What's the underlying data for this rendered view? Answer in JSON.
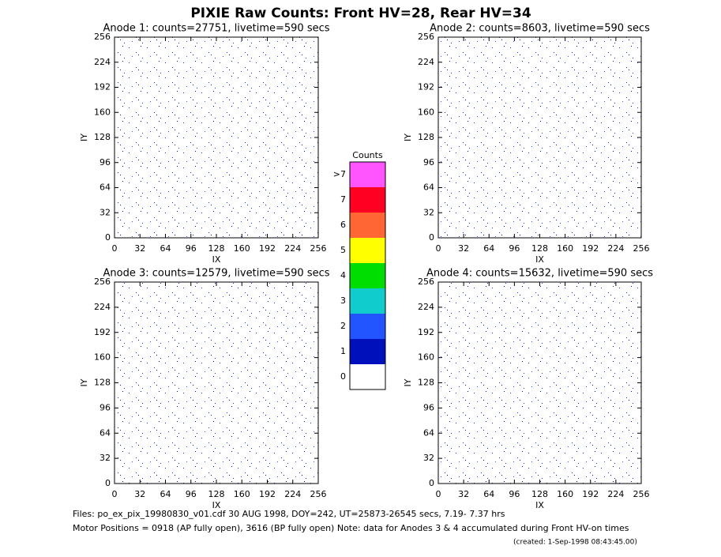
{
  "chart_data": [
    {
      "type": "heatmap",
      "title": "Anode 1: counts=27751, livetime=590 secs",
      "xlabel": "IX",
      "ylabel": "IY",
      "xlim": [
        0,
        256
      ],
      "ylim": [
        0,
        256
      ],
      "xticks": [
        0,
        32,
        64,
        96,
        128,
        160,
        192,
        224,
        256
      ],
      "yticks": [
        0,
        32,
        64,
        96,
        128,
        160,
        192,
        224,
        256
      ]
    },
    {
      "type": "heatmap",
      "title": "Anode 2: counts=8603, livetime=590 secs",
      "xlabel": "IX",
      "ylabel": "IY",
      "xlim": [
        0,
        256
      ],
      "ylim": [
        0,
        256
      ],
      "xticks": [
        0,
        32,
        64,
        96,
        128,
        160,
        192,
        224,
        256
      ],
      "yticks": [
        0,
        32,
        64,
        96,
        128,
        160,
        192,
        224,
        256
      ]
    },
    {
      "type": "heatmap",
      "title": "Anode 3: counts=12579, livetime=590 secs",
      "xlabel": "IX",
      "ylabel": "IY",
      "xlim": [
        0,
        256
      ],
      "ylim": [
        0,
        256
      ],
      "xticks": [
        0,
        32,
        64,
        96,
        128,
        160,
        192,
        224,
        256
      ],
      "yticks": [
        0,
        32,
        64,
        96,
        128,
        160,
        192,
        224,
        256
      ]
    },
    {
      "type": "heatmap",
      "title": "Anode 4: counts=15632, livetime=590 secs",
      "xlabel": "IX",
      "ylabel": "IY",
      "xlim": [
        0,
        256
      ],
      "ylim": [
        0,
        256
      ],
      "xticks": [
        0,
        32,
        64,
        96,
        128,
        160,
        192,
        224,
        256
      ],
      "yticks": [
        0,
        32,
        64,
        96,
        128,
        160,
        192,
        224,
        256
      ]
    }
  ],
  "title": "PIXIE Raw Counts:  Front HV=28, Rear HV=34",
  "colorbar": {
    "title": "Counts",
    "ticks": [
      0,
      1,
      2,
      3,
      4,
      5,
      6,
      7,
      {
        "value": 8,
        "label": ">7"
      }
    ],
    "colors": [
      "#ffffff",
      "#0011bb",
      "#2255ff",
      "#11cccc",
      "#00dd00",
      "#ffff00",
      "#ff6633",
      "#ff0022",
      "#ff55ff"
    ]
  },
  "footer": [
    "Files: po_ex_pix_19980830_v01.cdf    30 AUG 1998, DOY=242, UT=25873-26545 secs,  7.19- 7.37 hrs",
    "Motor Positions = 0918 (AP fully open), 3616 (BP fully open)    Note: data for Anodes 3 & 4 accumulated during Front HV-on times",
    "(created:  1-Sep-1998 08:43:45.00)"
  ]
}
